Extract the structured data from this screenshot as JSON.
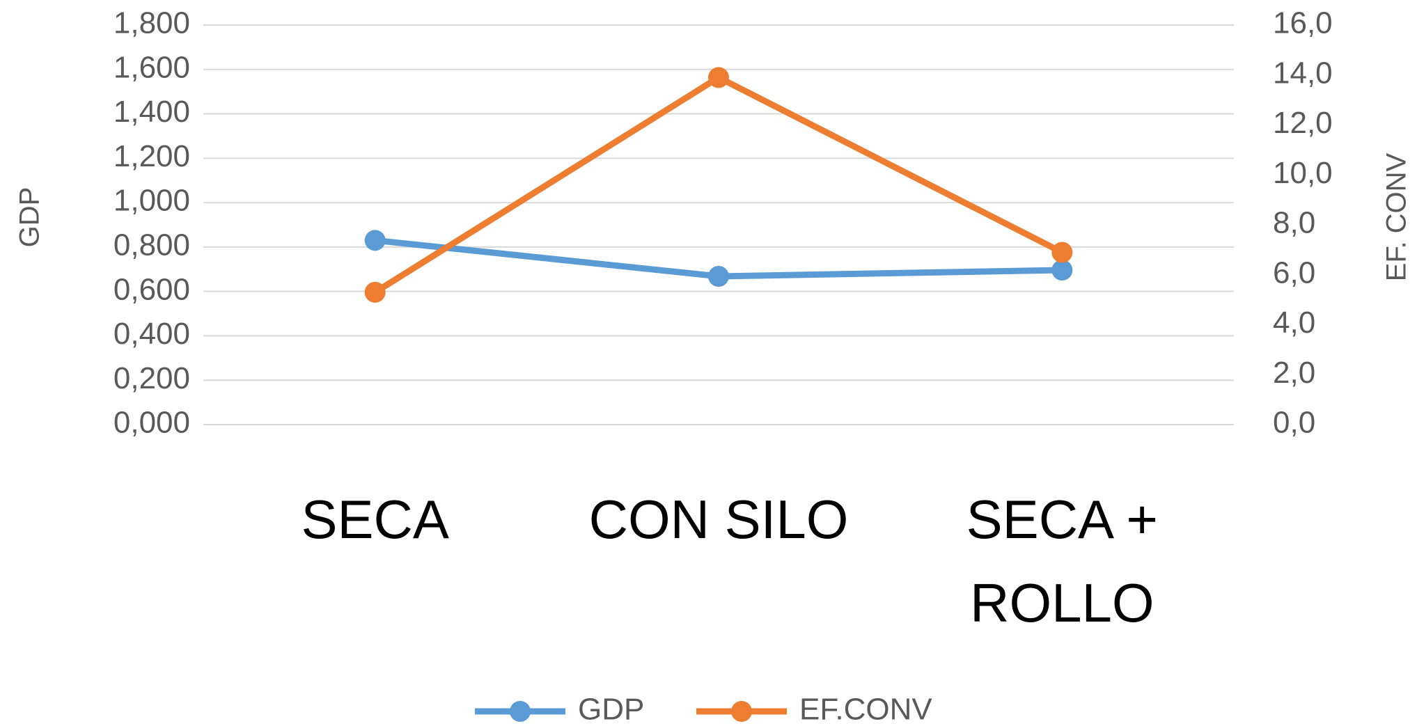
{
  "chart_data": {
    "type": "line",
    "categories": [
      "SECA",
      "CON SILO",
      "SECA + ROLLO"
    ],
    "series": [
      {
        "name": "GDP",
        "color": "#5b9bd5",
        "values": [
          0.83,
          0.668,
          0.696
        ]
      },
      {
        "name": "EF.CONV",
        "color": "#ed7d31",
        "axis": "y2",
        "values": [
          5.3,
          13.9,
          6.9
        ]
      }
    ],
    "ylabel": "GDP",
    "y2label": "EF. CONV",
    "ylim": [
      0,
      1.8
    ],
    "yticks": [
      {
        "value": 0,
        "label": "0,000"
      },
      {
        "value": 0.2,
        "label": "0,200"
      },
      {
        "value": 0.4,
        "label": "0,400"
      },
      {
        "value": 0.6,
        "label": "0,600"
      },
      {
        "value": 0.8,
        "label": "0,800"
      },
      {
        "value": 1.0,
        "label": "1,000"
      },
      {
        "value": 1.2,
        "label": "1,200"
      },
      {
        "value": 1.4,
        "label": "1,400"
      },
      {
        "value": 1.6,
        "label": "1,600"
      },
      {
        "value": 1.8,
        "label": "1,800"
      }
    ],
    "y2lim": [
      0,
      16
    ],
    "y2ticks": [
      {
        "value": 0,
        "label": "0,0"
      },
      {
        "value": 2,
        "label": "2,0"
      },
      {
        "value": 4,
        "label": "4,0"
      },
      {
        "value": 6,
        "label": "6,0"
      },
      {
        "value": 8,
        "label": "8,0"
      },
      {
        "value": 10,
        "label": "10,0"
      },
      {
        "value": 12,
        "label": "12,0"
      },
      {
        "value": 14,
        "label": "14,0"
      },
      {
        "value": 16,
        "label": "16,0"
      }
    ],
    "grid": true,
    "legend": "bottom"
  }
}
